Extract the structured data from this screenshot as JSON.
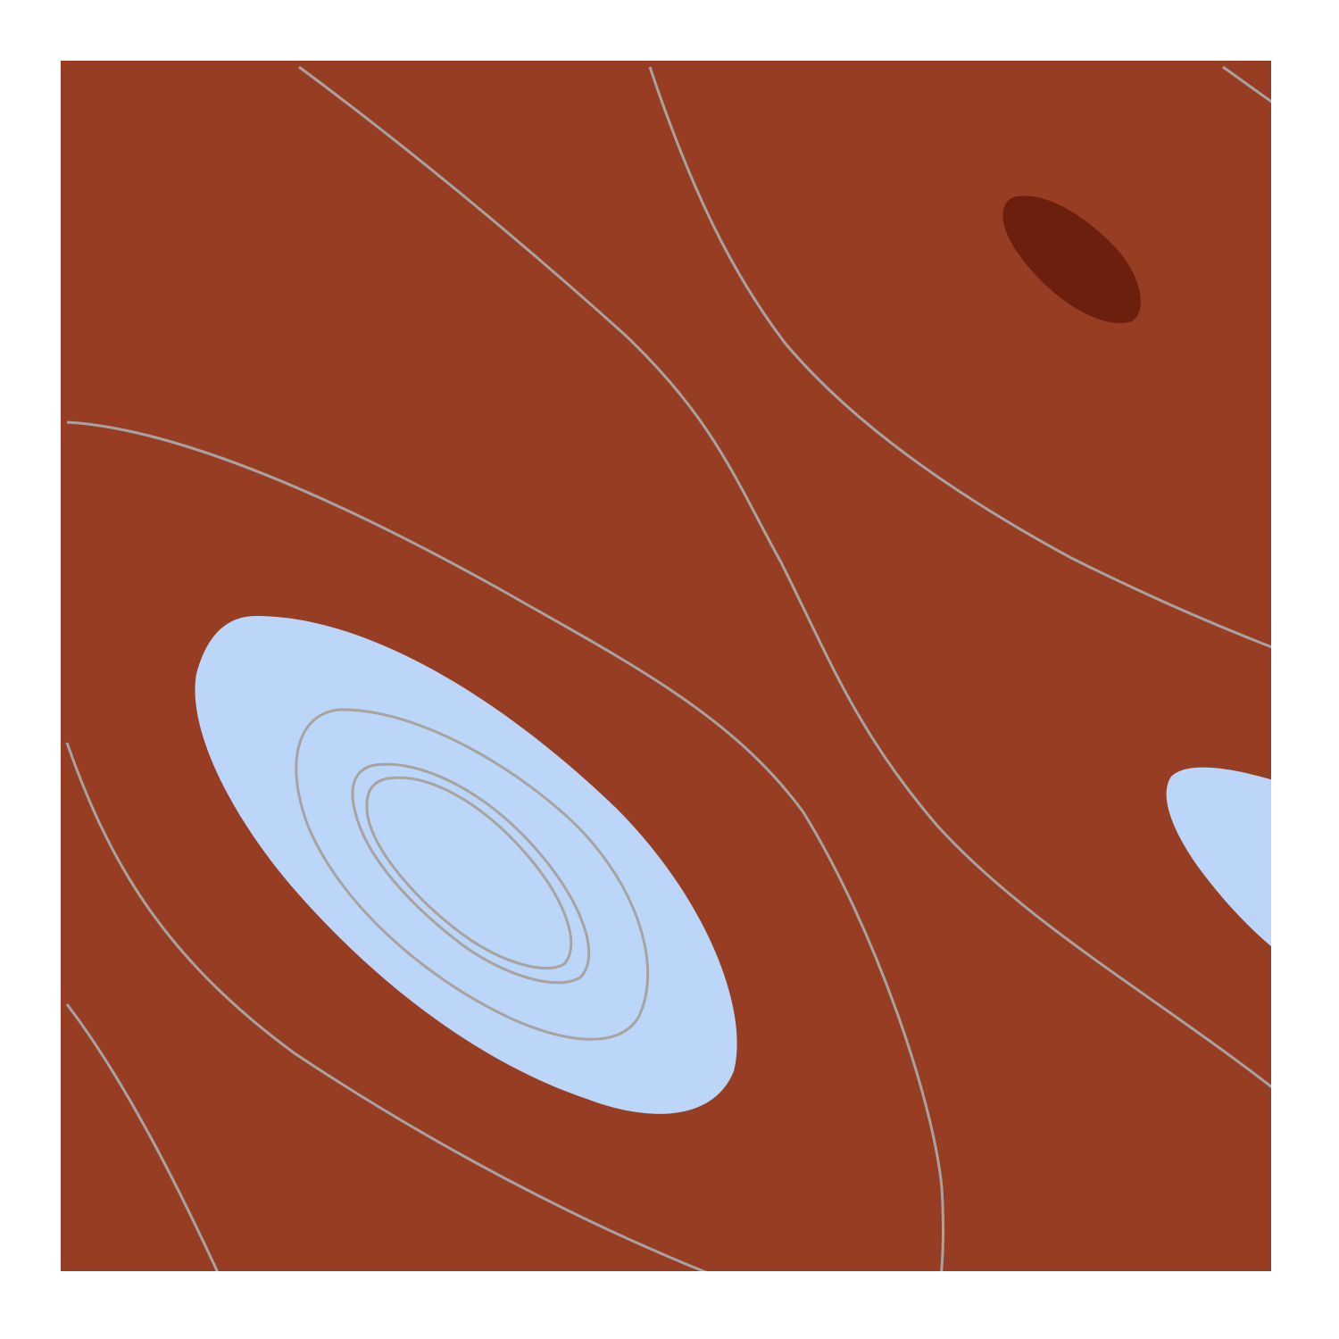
{
  "chart_data": {
    "type": "contour",
    "title": "",
    "xlabel": "",
    "ylabel": "",
    "axes_visible": false,
    "ticks_visible": false,
    "grid": false,
    "legend": "none",
    "colorbar": false,
    "colors": {
      "background_field": "#963d24",
      "low_region": "#bbd6f8",
      "high_region": "#6d1f0e",
      "contour_line": "#a8a3a1"
    },
    "filled_regions": [
      {
        "name": "low-region-left-center",
        "color_key": "low_region"
      },
      {
        "name": "low-region-right-edge",
        "color_key": "low_region"
      },
      {
        "name": "high-region-top-right",
        "color_key": "high_region"
      }
    ],
    "contour_line_count": 10
  }
}
